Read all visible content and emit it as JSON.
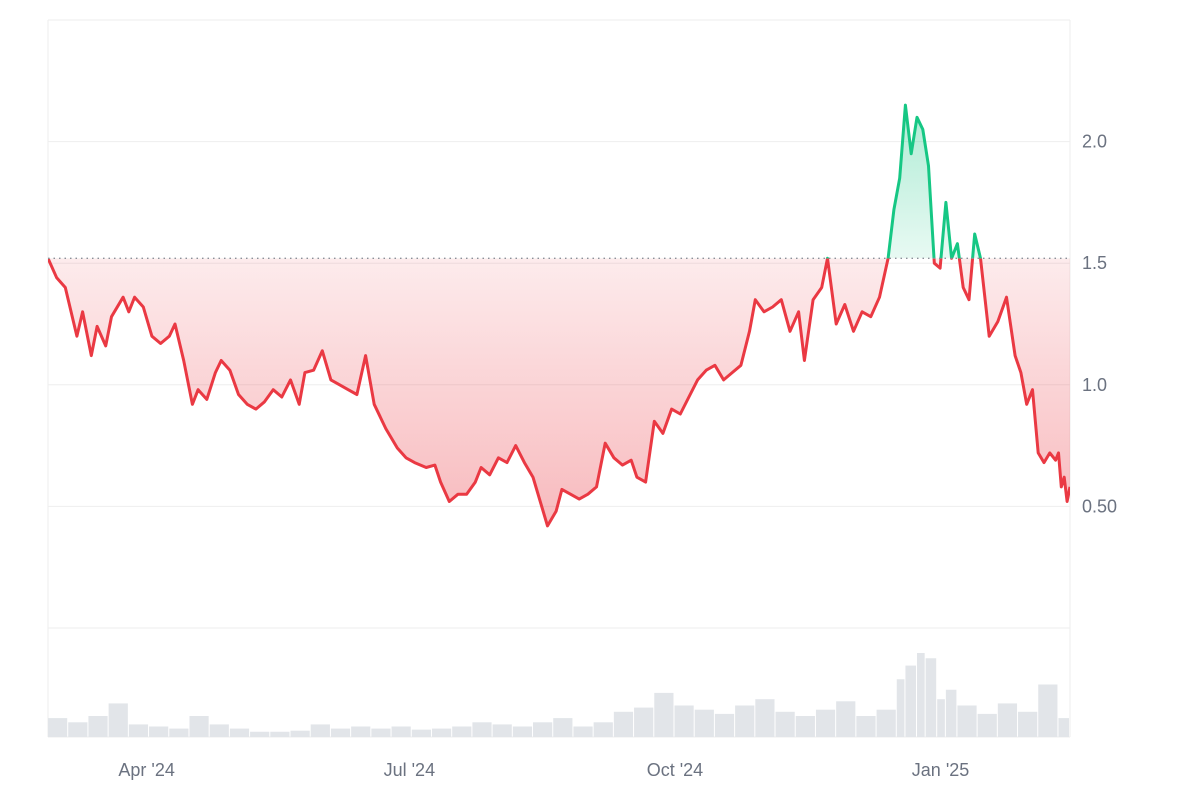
{
  "chart_data": {
    "type": "area",
    "title": "",
    "xlabel": "",
    "ylabel": "",
    "ylim": [
      0,
      2.5
    ],
    "baseline": 1.52,
    "grid": true,
    "legend": "none",
    "colors": {
      "up": "#16c784",
      "down": "#ea3943",
      "grid": "#eeeeee",
      "volume": "#e2e5e9"
    },
    "x_range": [
      "2024-03-11",
      "2025-02-28"
    ],
    "x_ticks": [
      {
        "date": "2024-04-01",
        "label": "Apr '24"
      },
      {
        "date": "2024-07-01",
        "label": "Jul '24"
      },
      {
        "date": "2024-10-01",
        "label": "Oct '24"
      },
      {
        "date": "2025-01-01",
        "label": "Jan '25"
      }
    ],
    "y_ticks": [
      {
        "value": 2.0,
        "label": "2.0"
      },
      {
        "value": 1.5,
        "label": "1.5"
      },
      {
        "value": 1.0,
        "label": "1.0"
      },
      {
        "value": 0.5,
        "label": "0.50"
      }
    ],
    "series": [
      {
        "points": [
          [
            "2024-03-11",
            1.52
          ],
          [
            "2024-03-14",
            1.44
          ],
          [
            "2024-03-17",
            1.4
          ],
          [
            "2024-03-21",
            1.2
          ],
          [
            "2024-03-23",
            1.3
          ],
          [
            "2024-03-26",
            1.12
          ],
          [
            "2024-03-28",
            1.24
          ],
          [
            "2024-03-31",
            1.16
          ],
          [
            "2024-04-02",
            1.28
          ],
          [
            "2024-04-06",
            1.36
          ],
          [
            "2024-04-08",
            1.3
          ],
          [
            "2024-04-10",
            1.36
          ],
          [
            "2024-04-13",
            1.32
          ],
          [
            "2024-04-16",
            1.2
          ],
          [
            "2024-04-19",
            1.17
          ],
          [
            "2024-04-22",
            1.2
          ],
          [
            "2024-04-24",
            1.25
          ],
          [
            "2024-04-27",
            1.1
          ],
          [
            "2024-04-30",
            0.92
          ],
          [
            "2024-05-02",
            0.98
          ],
          [
            "2024-05-05",
            0.94
          ],
          [
            "2024-05-08",
            1.05
          ],
          [
            "2024-05-10",
            1.1
          ],
          [
            "2024-05-13",
            1.06
          ],
          [
            "2024-05-16",
            0.96
          ],
          [
            "2024-05-19",
            0.92
          ],
          [
            "2024-05-22",
            0.9
          ],
          [
            "2024-05-25",
            0.93
          ],
          [
            "2024-05-28",
            0.98
          ],
          [
            "2024-05-31",
            0.95
          ],
          [
            "2024-06-03",
            1.02
          ],
          [
            "2024-06-06",
            0.92
          ],
          [
            "2024-06-08",
            1.05
          ],
          [
            "2024-06-11",
            1.06
          ],
          [
            "2024-06-14",
            1.14
          ],
          [
            "2024-06-17",
            1.02
          ],
          [
            "2024-06-20",
            1.0
          ],
          [
            "2024-06-23",
            0.98
          ],
          [
            "2024-06-26",
            0.96
          ],
          [
            "2024-06-29",
            1.12
          ],
          [
            "2024-07-02",
            0.92
          ],
          [
            "2024-07-06",
            0.82
          ],
          [
            "2024-07-10",
            0.74
          ],
          [
            "2024-07-13",
            0.7
          ],
          [
            "2024-07-16",
            0.68
          ],
          [
            "2024-07-20",
            0.66
          ],
          [
            "2024-07-23",
            0.67
          ],
          [
            "2024-07-25",
            0.6
          ],
          [
            "2024-07-28",
            0.52
          ],
          [
            "2024-07-31",
            0.55
          ],
          [
            "2024-08-03",
            0.55
          ],
          [
            "2024-08-06",
            0.6
          ],
          [
            "2024-08-08",
            0.66
          ],
          [
            "2024-08-11",
            0.63
          ],
          [
            "2024-08-14",
            0.7
          ],
          [
            "2024-08-17",
            0.68
          ],
          [
            "2024-08-20",
            0.75
          ],
          [
            "2024-08-23",
            0.68
          ],
          [
            "2024-08-26",
            0.62
          ],
          [
            "2024-08-29",
            0.5
          ],
          [
            "2024-08-31",
            0.42
          ],
          [
            "2024-09-03",
            0.48
          ],
          [
            "2024-09-05",
            0.57
          ],
          [
            "2024-09-08",
            0.55
          ],
          [
            "2024-09-11",
            0.53
          ],
          [
            "2024-09-14",
            0.55
          ],
          [
            "2024-09-17",
            0.58
          ],
          [
            "2024-09-20",
            0.76
          ],
          [
            "2024-09-23",
            0.7
          ],
          [
            "2024-09-26",
            0.67
          ],
          [
            "2024-09-29",
            0.69
          ],
          [
            "2024-10-01",
            0.62
          ],
          [
            "2024-10-04",
            0.6
          ],
          [
            "2024-10-07",
            0.85
          ],
          [
            "2024-10-10",
            0.8
          ],
          [
            "2024-10-13",
            0.9
          ],
          [
            "2024-10-16",
            0.88
          ],
          [
            "2024-10-19",
            0.95
          ],
          [
            "2024-10-22",
            1.02
          ],
          [
            "2024-10-25",
            1.06
          ],
          [
            "2024-10-28",
            1.08
          ],
          [
            "2024-10-31",
            1.02
          ],
          [
            "2024-11-03",
            1.05
          ],
          [
            "2024-11-06",
            1.08
          ],
          [
            "2024-11-09",
            1.22
          ],
          [
            "2024-11-11",
            1.35
          ],
          [
            "2024-11-14",
            1.3
          ],
          [
            "2024-11-17",
            1.32
          ],
          [
            "2024-11-20",
            1.35
          ],
          [
            "2024-11-23",
            1.22
          ],
          [
            "2024-11-26",
            1.3
          ],
          [
            "2024-11-28",
            1.1
          ],
          [
            "2024-12-01",
            1.35
          ],
          [
            "2024-12-04",
            1.4
          ],
          [
            "2024-12-06",
            1.52
          ],
          [
            "2024-12-09",
            1.25
          ],
          [
            "2024-12-12",
            1.33
          ],
          [
            "2024-12-15",
            1.22
          ],
          [
            "2024-12-18",
            1.3
          ],
          [
            "2024-12-21",
            1.28
          ],
          [
            "2024-12-24",
            1.36
          ],
          [
            "2024-12-27",
            1.52
          ],
          [
            "2024-12-29",
            1.72
          ],
          [
            "2024-12-31",
            1.85
          ],
          [
            "2025-01-02",
            2.15
          ],
          [
            "2025-01-04",
            1.95
          ],
          [
            "2025-01-06",
            2.1
          ],
          [
            "2025-01-08",
            2.05
          ],
          [
            "2025-01-10",
            1.9
          ],
          [
            "2025-01-12",
            1.5
          ],
          [
            "2025-01-14",
            1.48
          ],
          [
            "2025-01-16",
            1.75
          ],
          [
            "2025-01-18",
            1.52
          ],
          [
            "2025-01-20",
            1.58
          ],
          [
            "2025-01-22",
            1.4
          ],
          [
            "2025-01-24",
            1.35
          ],
          [
            "2025-01-26",
            1.62
          ],
          [
            "2025-01-28",
            1.52
          ],
          [
            "2025-01-31",
            1.2
          ],
          [
            "2025-02-03",
            1.26
          ],
          [
            "2025-02-06",
            1.36
          ],
          [
            "2025-02-09",
            1.12
          ],
          [
            "2025-02-11",
            1.05
          ],
          [
            "2025-02-13",
            0.92
          ],
          [
            "2025-02-15",
            0.98
          ],
          [
            "2025-02-17",
            0.72
          ],
          [
            "2025-02-19",
            0.68
          ],
          [
            "2025-02-21",
            0.72
          ],
          [
            "2025-02-23",
            0.69
          ],
          [
            "2025-02-24",
            0.72
          ],
          [
            "2025-02-25",
            0.58
          ],
          [
            "2025-02-26",
            0.62
          ],
          [
            "2025-02-27",
            0.52
          ],
          [
            "2025-02-28",
            0.58
          ]
        ]
      }
    ],
    "volume": {
      "relative_max": 1.0,
      "bars": [
        [
          "2024-03-11",
          0.18
        ],
        [
          "2024-03-18",
          0.14
        ],
        [
          "2024-03-25",
          0.2
        ],
        [
          "2024-04-01",
          0.32
        ],
        [
          "2024-04-08",
          0.12
        ],
        [
          "2024-04-15",
          0.1
        ],
        [
          "2024-04-22",
          0.08
        ],
        [
          "2024-04-29",
          0.2
        ],
        [
          "2024-05-06",
          0.12
        ],
        [
          "2024-05-13",
          0.08
        ],
        [
          "2024-05-20",
          0.05
        ],
        [
          "2024-05-27",
          0.05
        ],
        [
          "2024-06-03",
          0.06
        ],
        [
          "2024-06-10",
          0.12
        ],
        [
          "2024-06-17",
          0.08
        ],
        [
          "2024-06-24",
          0.1
        ],
        [
          "2024-07-01",
          0.08
        ],
        [
          "2024-07-08",
          0.1
        ],
        [
          "2024-07-15",
          0.07
        ],
        [
          "2024-07-22",
          0.08
        ],
        [
          "2024-07-29",
          0.1
        ],
        [
          "2024-08-05",
          0.14
        ],
        [
          "2024-08-12",
          0.12
        ],
        [
          "2024-08-19",
          0.1
        ],
        [
          "2024-08-26",
          0.14
        ],
        [
          "2024-09-02",
          0.18
        ],
        [
          "2024-09-09",
          0.1
        ],
        [
          "2024-09-16",
          0.14
        ],
        [
          "2024-09-23",
          0.24
        ],
        [
          "2024-09-30",
          0.28
        ],
        [
          "2024-10-07",
          0.42
        ],
        [
          "2024-10-14",
          0.3
        ],
        [
          "2024-10-21",
          0.26
        ],
        [
          "2024-10-28",
          0.22
        ],
        [
          "2024-11-04",
          0.3
        ],
        [
          "2024-11-11",
          0.36
        ],
        [
          "2024-11-18",
          0.24
        ],
        [
          "2024-11-25",
          0.2
        ],
        [
          "2024-12-02",
          0.26
        ],
        [
          "2024-12-09",
          0.34
        ],
        [
          "2024-12-16",
          0.2
        ],
        [
          "2024-12-23",
          0.26
        ],
        [
          "2024-12-30",
          0.55
        ],
        [
          "2025-01-02",
          0.68
        ],
        [
          "2025-01-06",
          0.8
        ],
        [
          "2025-01-09",
          0.75
        ],
        [
          "2025-01-13",
          0.36
        ],
        [
          "2025-01-16",
          0.45
        ],
        [
          "2025-01-20",
          0.3
        ],
        [
          "2025-01-27",
          0.22
        ],
        [
          "2025-02-03",
          0.32
        ],
        [
          "2025-02-10",
          0.24
        ],
        [
          "2025-02-17",
          0.5
        ],
        [
          "2025-02-24",
          0.18
        ]
      ]
    }
  }
}
